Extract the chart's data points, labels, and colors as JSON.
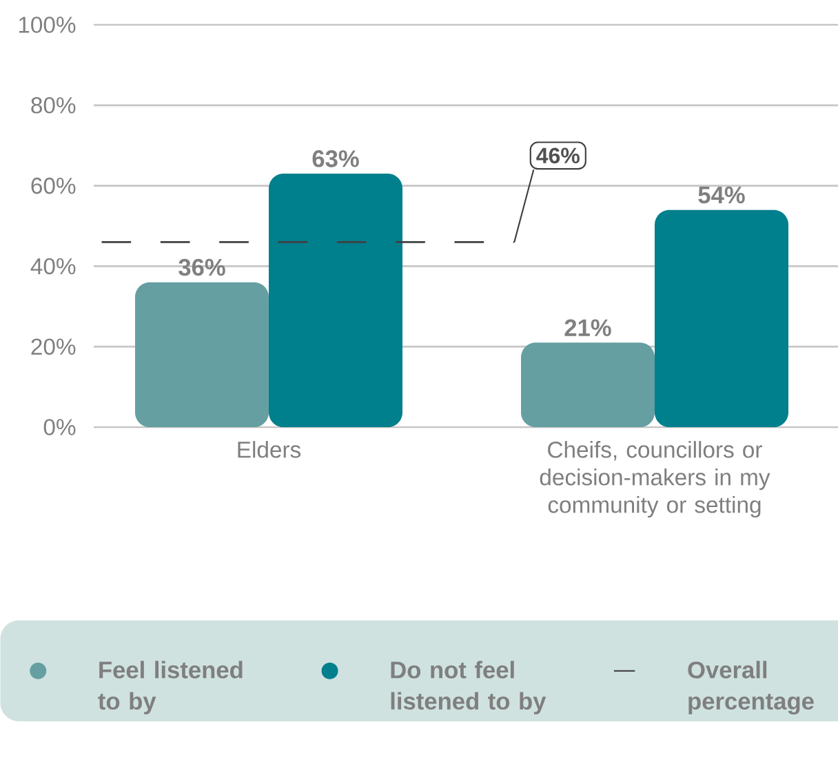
{
  "chart_data": {
    "type": "bar",
    "categories": [
      "Elders",
      "Cheifs, councillors or decision-makers in my community or setting"
    ],
    "series": [
      {
        "name": "Feel listened to by",
        "color": "#659fa2",
        "values": [
          36,
          21
        ],
        "value_labels": [
          "36%",
          "21%"
        ]
      },
      {
        "name": "Do not feel listened to by",
        "color": "#007f8c",
        "values": [
          63,
          54
        ],
        "value_labels": [
          "63%",
          "54%"
        ]
      }
    ],
    "ylim": [
      0,
      100
    ],
    "yticks": [
      {
        "value": 0,
        "label": "0%"
      },
      {
        "value": 20,
        "label": "20%"
      },
      {
        "value": 40,
        "label": "40%"
      },
      {
        "value": 60,
        "label": "60%"
      },
      {
        "value": 80,
        "label": "80%"
      },
      {
        "value": 100,
        "label": "100%"
      }
    ],
    "ref_lines": [
      {
        "axis": "y",
        "value": 46,
        "label": "46%",
        "color": "#404040",
        "line_style": "dashed"
      }
    ],
    "annotations": [
      "Overall percentage"
    ],
    "grid": "y",
    "legend": "bottom"
  }
}
